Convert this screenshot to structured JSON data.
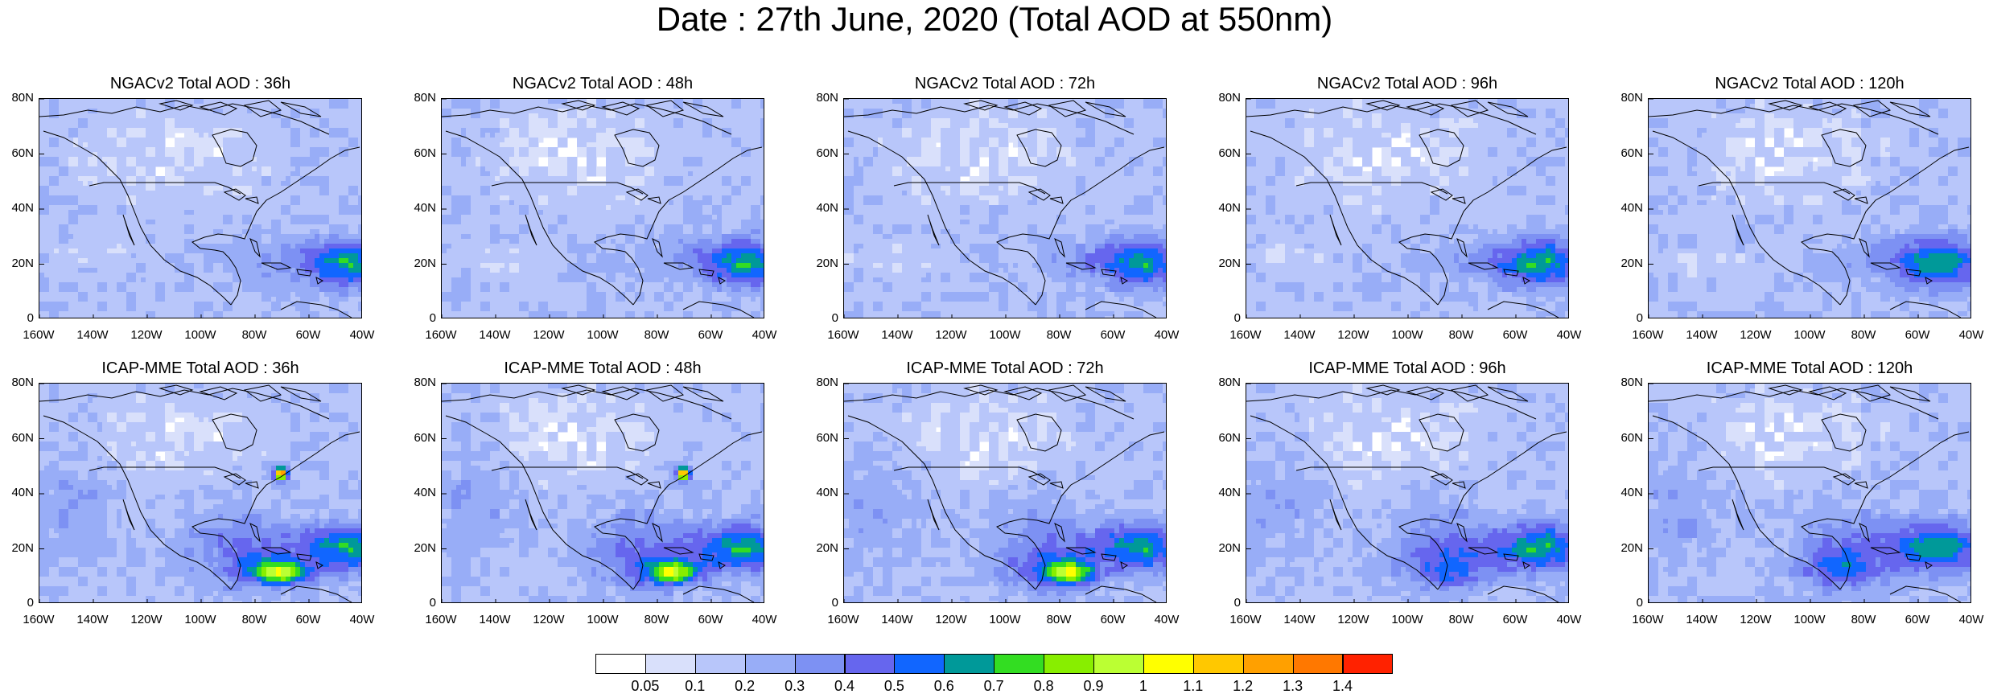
{
  "title": "Date : 27th June, 2020 (Total AOD at 550nm)",
  "panels": [
    {
      "title": "NGACv2 Total AOD : 36h",
      "model": "NGACv2"
    },
    {
      "title": "NGACv2 Total AOD : 48h",
      "model": "NGACv2"
    },
    {
      "title": "NGACv2 Total AOD : 72h",
      "model": "NGACv2"
    },
    {
      "title": "NGACv2 Total AOD : 96h",
      "model": "NGACv2"
    },
    {
      "title": "NGACv2 Total AOD : 120h",
      "model": "NGACv2"
    },
    {
      "title": "ICAP-MME Total AOD : 36h",
      "model": "ICAP-MME"
    },
    {
      "title": "ICAP-MME Total AOD : 48h",
      "model": "ICAP-MME"
    },
    {
      "title": "ICAP-MME Total AOD : 72h",
      "model": "ICAP-MME"
    },
    {
      "title": "ICAP-MME Total AOD : 96h",
      "model": "ICAP-MME"
    },
    {
      "title": "ICAP-MME Total AOD : 120h",
      "model": "ICAP-MME"
    }
  ],
  "lat_labels": [
    "80N",
    "60N",
    "40N",
    "20N",
    "0"
  ],
  "lon_labels": [
    "160W",
    "140W",
    "120W",
    "100W",
    "80W",
    "60W",
    "40W"
  ],
  "colorbar": {
    "labels": [
      "0.05",
      "0.1",
      "0.2",
      "0.3",
      "0.4",
      "0.5",
      "0.6",
      "0.7",
      "0.8",
      "0.9",
      "1",
      "1.1",
      "1.2",
      "1.3",
      "1.4"
    ],
    "colors": [
      "#ffffff",
      "#d9e0fb",
      "#b8c6fa",
      "#98adf7",
      "#7d91f3",
      "#6666ee",
      "#1166ff",
      "#009999",
      "#33dd22",
      "#88ee00",
      "#bbff33",
      "#ffff00",
      "#ffc800",
      "#ffa000",
      "#ff7800",
      "#ff2200"
    ]
  }
}
